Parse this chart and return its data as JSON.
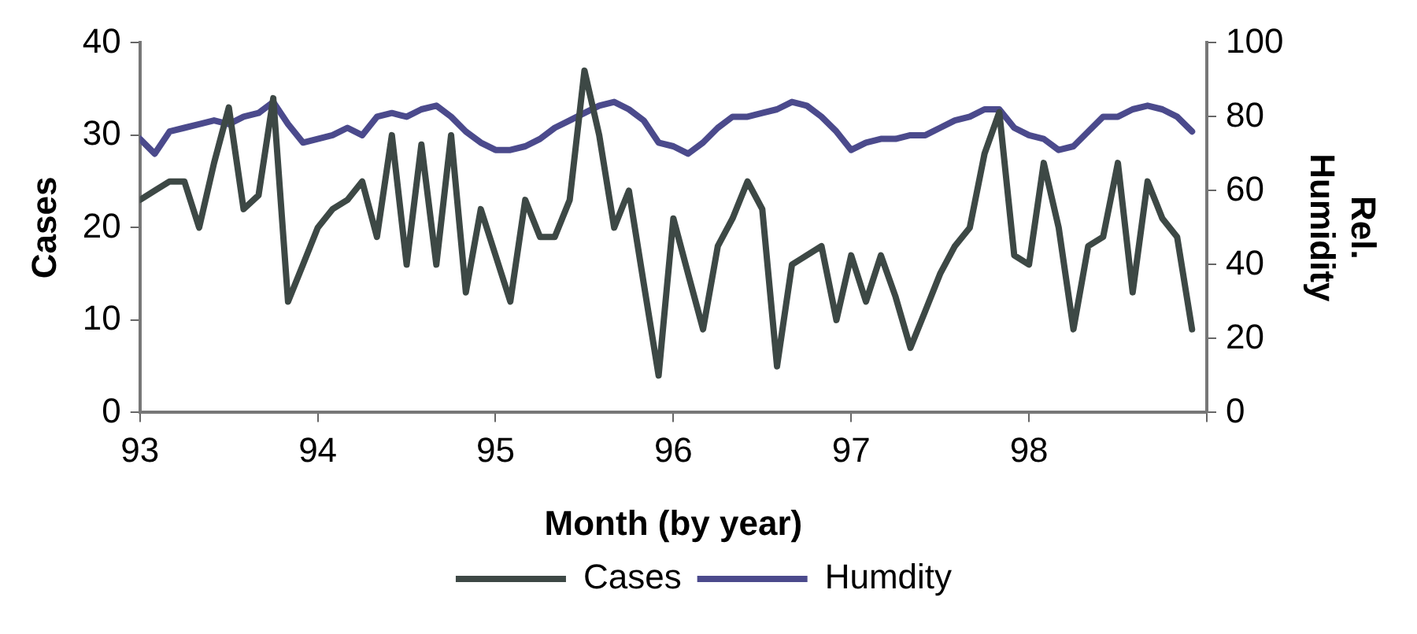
{
  "chart_data": {
    "type": "line",
    "xlabel": "Month (by year)",
    "ylabel": "Cases",
    "y2label": "Rel. Humidity",
    "x": [
      93,
      93.083,
      93.167,
      93.25,
      93.333,
      93.417,
      93.5,
      93.583,
      93.667,
      93.75,
      93.833,
      93.917,
      94,
      94.083,
      94.167,
      94.25,
      94.333,
      94.417,
      94.5,
      94.583,
      94.667,
      94.75,
      94.833,
      94.917,
      95,
      95.083,
      95.167,
      95.25,
      95.333,
      95.417,
      95.5,
      95.583,
      95.667,
      95.75,
      95.833,
      95.917,
      96,
      96.083,
      96.167,
      96.25,
      96.333,
      96.417,
      96.5,
      96.583,
      96.667,
      96.75,
      96.833,
      96.917,
      97,
      97.083,
      97.167,
      97.25,
      97.333,
      97.417,
      97.5,
      97.583,
      97.667,
      97.75,
      97.833,
      97.917,
      98,
      98.083,
      98.167,
      98.25,
      98.333,
      98.417,
      98.5,
      98.583,
      98.667,
      98.75,
      98.833,
      98.917
    ],
    "series": [
      {
        "name": "Cases",
        "color": "#3d4845",
        "values": [
          23,
          24,
          25,
          25,
          20,
          27,
          33,
          22,
          23.5,
          34,
          12,
          16,
          20,
          22,
          23,
          25,
          19,
          30,
          16,
          29,
          16,
          30,
          13,
          22,
          17,
          12,
          23,
          19,
          19,
          23,
          37,
          30,
          20,
          24,
          14,
          4,
          21,
          15,
          9,
          18,
          21,
          25,
          22,
          5,
          16,
          17,
          18,
          10,
          17,
          12,
          17,
          12.5,
          7,
          11,
          15,
          18,
          20,
          28,
          32.5,
          17,
          16,
          27,
          20,
          9,
          18,
          19,
          27,
          13,
          25,
          21,
          19,
          9
        ]
      },
      {
        "name": "Humdity",
        "color": "#4b4a8c",
        "axis": "y2",
        "values": [
          74,
          70,
          76,
          77,
          78,
          79,
          78,
          80,
          81,
          84,
          78,
          73,
          74,
          75,
          77,
          75,
          80,
          81,
          80,
          82,
          83,
          80,
          76,
          73,
          71,
          71,
          72,
          74,
          77,
          79,
          81,
          83,
          84,
          82,
          79,
          73,
          72,
          70,
          73,
          77,
          80,
          80,
          81,
          82,
          84,
          83,
          80,
          76,
          71,
          73,
          74,
          74,
          75,
          75,
          77,
          79,
          80,
          82,
          82,
          77,
          75,
          74,
          71,
          72,
          76,
          80,
          80,
          82,
          83,
          82,
          80,
          76
        ]
      }
    ],
    "xlim": [
      93,
      99
    ],
    "xticks": [
      93,
      94,
      95,
      96,
      97,
      98,
      {
        "value": 99,
        "label": null
      }
    ],
    "ylim": [
      0,
      40
    ],
    "yticks": [
      0,
      10,
      20,
      30,
      40
    ],
    "y2lim": [
      0,
      100
    ],
    "y2ticks": [
      0,
      20,
      40,
      60,
      80,
      100
    ],
    "grid": false,
    "legend": "bottom",
    "marker": "none",
    "line_style": "solid"
  }
}
